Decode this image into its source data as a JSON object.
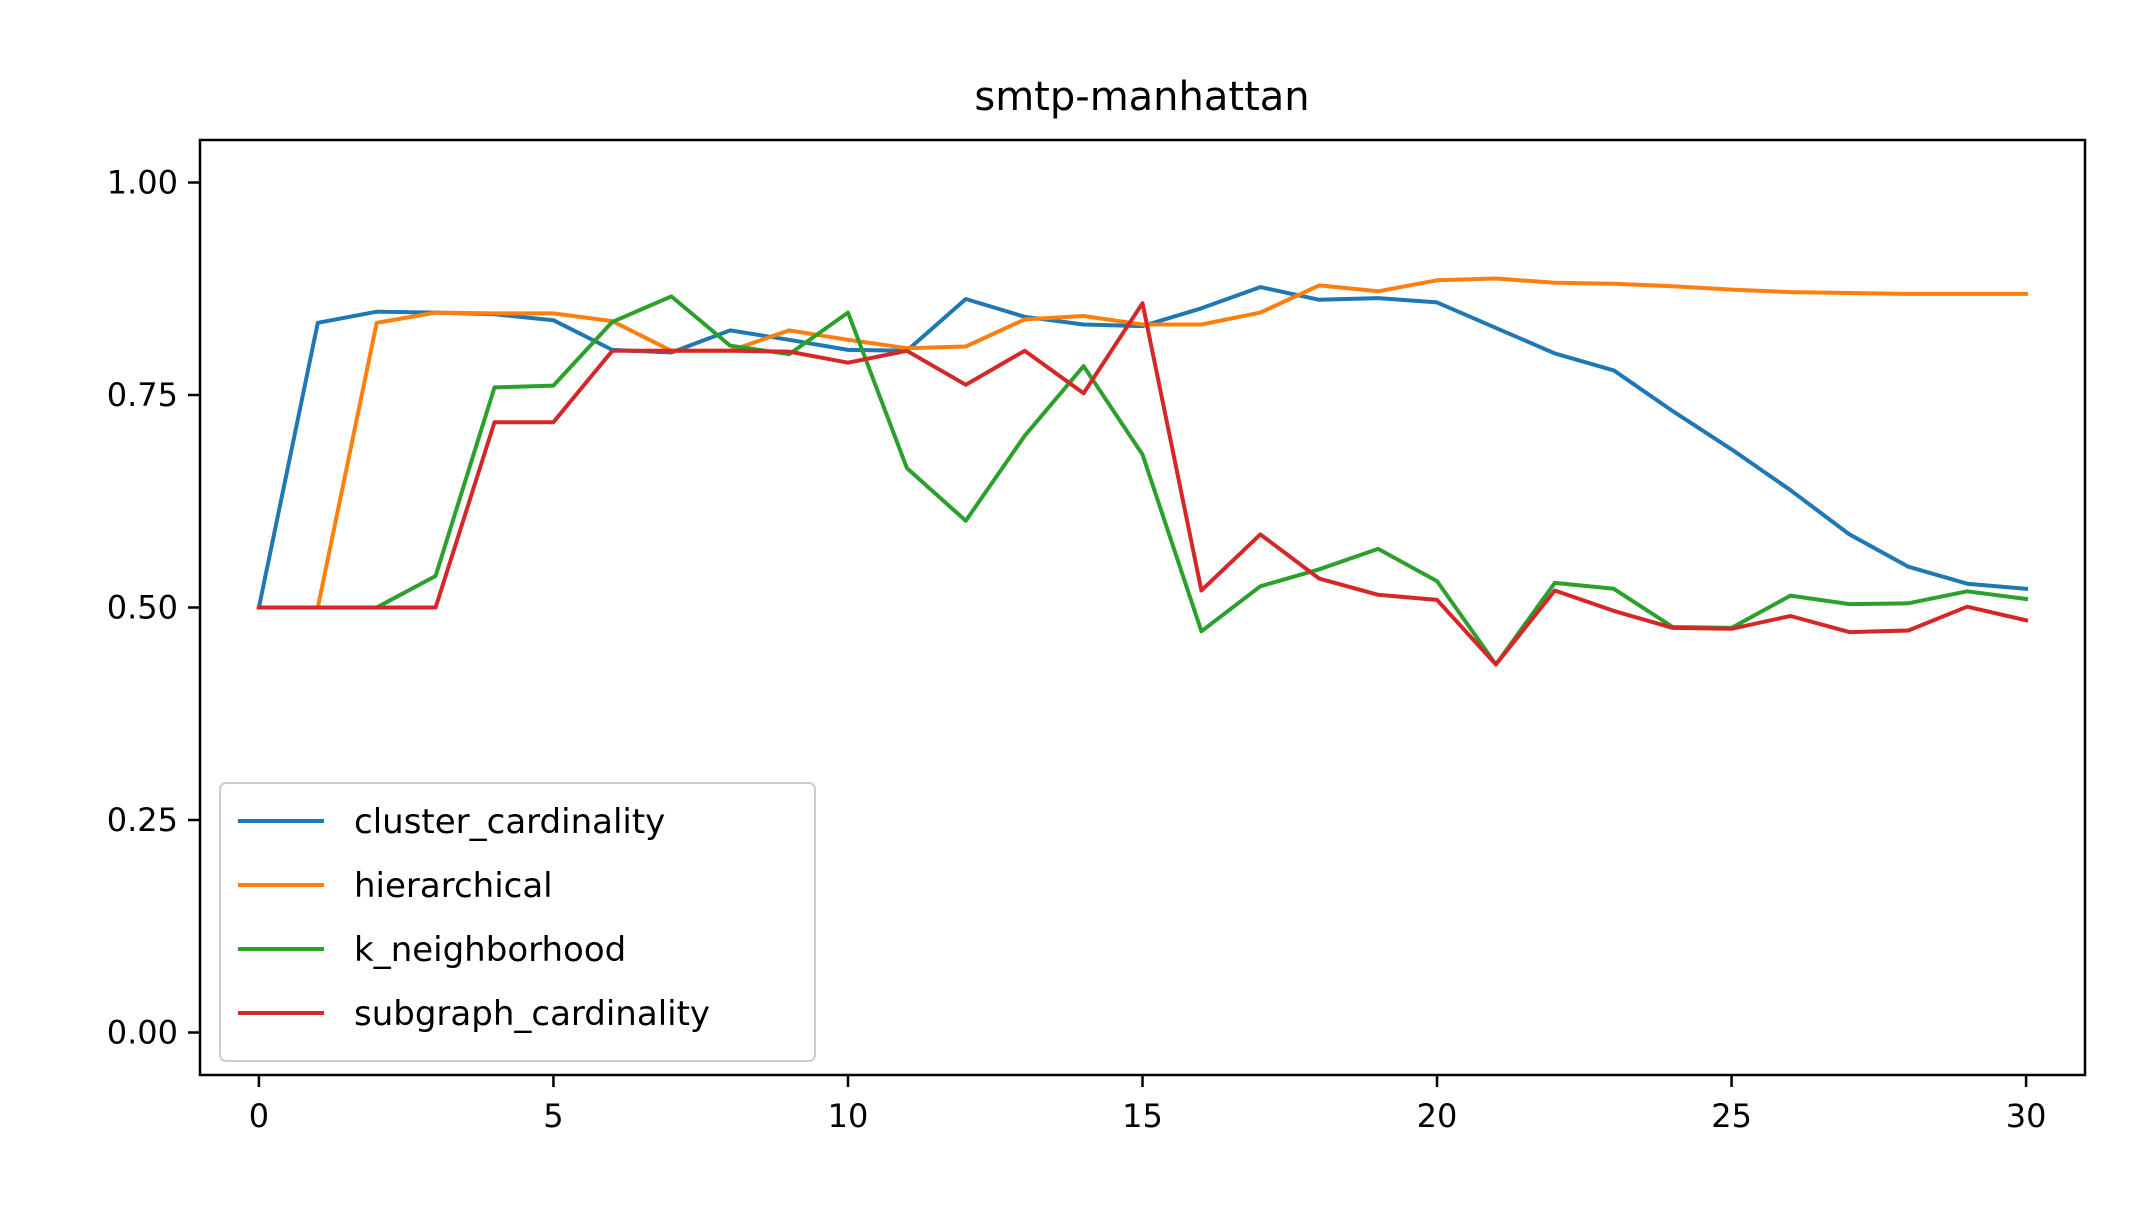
{
  "chart_data": {
    "type": "line",
    "title": "smtp-manhattan",
    "xlabel": "",
    "ylabel": "",
    "xlim": [
      -1,
      31
    ],
    "ylim": [
      -0.05,
      1.05
    ],
    "x_ticks": [
      0,
      5,
      10,
      15,
      20,
      25,
      30
    ],
    "y_ticks": [
      0.0,
      0.25,
      0.5,
      0.75,
      1.0
    ],
    "y_tick_labels": [
      "0.00",
      "0.25",
      "0.50",
      "0.75",
      "1.00"
    ],
    "grid": false,
    "legend_position": "lower-left",
    "x": [
      0,
      1,
      2,
      3,
      4,
      5,
      6,
      7,
      8,
      9,
      10,
      11,
      12,
      13,
      14,
      15,
      16,
      17,
      18,
      19,
      20,
      21,
      22,
      23,
      24,
      25,
      26,
      27,
      28,
      29,
      30
    ],
    "series": [
      {
        "name": "cluster_cardinality",
        "color": "#1f77b4",
        "values": [
          0.5,
          0.835,
          0.848,
          0.847,
          0.845,
          0.838,
          0.803,
          0.8,
          0.826,
          0.815,
          0.803,
          0.802,
          0.863,
          0.842,
          0.833,
          0.831,
          0.852,
          0.877,
          0.862,
          0.864,
          0.859,
          0.829,
          0.799,
          0.779,
          0.731,
          0.686,
          0.638,
          0.586,
          0.548,
          0.528,
          0.522
        ]
      },
      {
        "name": "hierarchical",
        "color": "#ff7f0e",
        "values": [
          0.5,
          0.5,
          0.835,
          0.847,
          0.846,
          0.846,
          0.837,
          0.802,
          0.802,
          0.826,
          0.815,
          0.805,
          0.807,
          0.839,
          0.843,
          0.833,
          0.833,
          0.847,
          0.879,
          0.872,
          0.885,
          0.887,
          0.882,
          0.881,
          0.878,
          0.874,
          0.871,
          0.87,
          0.869,
          0.869,
          0.869
        ]
      },
      {
        "name": "k_neighborhood",
        "color": "#2ca02c",
        "values": [
          0.5,
          0.5,
          0.5,
          0.537,
          0.759,
          0.761,
          0.836,
          0.866,
          0.808,
          0.798,
          0.847,
          0.664,
          0.602,
          0.702,
          0.784,
          0.68,
          0.472,
          0.525,
          0.545,
          0.569,
          0.531,
          0.433,
          0.529,
          0.522,
          0.477,
          0.476,
          0.514,
          0.504,
          0.505,
          0.519,
          0.51
        ]
      },
      {
        "name": "subgraph_cardinality",
        "color": "#d62728",
        "values": [
          0.5,
          0.5,
          0.5,
          0.5,
          0.718,
          0.718,
          0.802,
          0.802,
          0.802,
          0.801,
          0.788,
          0.802,
          0.762,
          0.802,
          0.752,
          0.858,
          0.52,
          0.586,
          0.534,
          0.515,
          0.509,
          0.433,
          0.52,
          0.496,
          0.476,
          0.475,
          0.49,
          0.471,
          0.473,
          0.501,
          0.485
        ]
      }
    ]
  }
}
